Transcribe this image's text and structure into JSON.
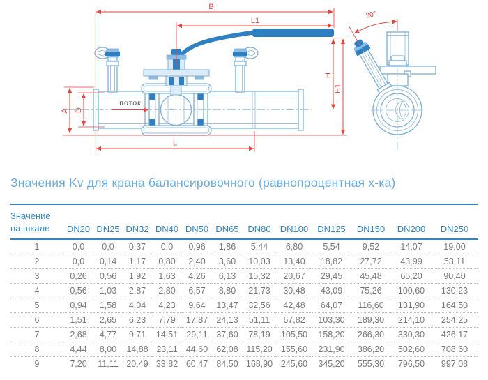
{
  "drawing": {
    "dim_labels": {
      "b": "B",
      "l1": "L1",
      "h": "H",
      "h1": "H1",
      "a": "A",
      "d": "D",
      "l": "L"
    },
    "angle_label": "30°",
    "flow_label": "поток",
    "colors": {
      "outline_blue": "#79afd9",
      "fill_dark_blue": "#2f80c3",
      "fill_mid_blue": "#8fbce2",
      "fill_light_blue": "#dcebf7",
      "dimension_red": "#e8433c",
      "centerline_blue": "#a6cbe9"
    }
  },
  "title": "Значения Kv для крана балансировочного (равнопроцентная х-ка)",
  "table": {
    "accent_color": "#2e86c8",
    "value_color": "#7a7a7a",
    "row_header": [
      "Значение",
      "на шкале"
    ],
    "columns": [
      "DN20",
      "DN25",
      "DN32",
      "DN40",
      "DN50",
      "DN65",
      "DN80",
      "DN100",
      "DN125",
      "DN150",
      "DN200",
      "DN250"
    ],
    "rows": [
      {
        "scale": "1",
        "values": [
          "0,0",
          "0,0",
          "0,37",
          "0,0",
          "0,96",
          "1,86",
          "5,44",
          "6,80",
          "5,54",
          "9,52",
          "14,07",
          "19,00"
        ]
      },
      {
        "scale": "2",
        "values": [
          "0,0",
          "0,14",
          "1,17",
          "0,80",
          "2,40",
          "3,60",
          "10,03",
          "13,40",
          "18,82",
          "27,72",
          "43,99",
          "53,11"
        ]
      },
      {
        "scale": "3",
        "values": [
          "0,26",
          "0,56",
          "1,92",
          "1,63",
          "4,26",
          "6,13",
          "15,32",
          "20,67",
          "29,45",
          "45,48",
          "65,20",
          "90,40"
        ]
      },
      {
        "scale": "4",
        "values": [
          "0,56",
          "1,03",
          "2,87",
          "2,80",
          "6,57",
          "8,80",
          "21,73",
          "30,48",
          "43,09",
          "75,26",
          "100,60",
          "130,23"
        ]
      },
      {
        "scale": "5",
        "values": [
          "0,94",
          "1,58",
          "4,04",
          "4,23",
          "9,64",
          "13,47",
          "32,56",
          "42,48",
          "64,07",
          "116,60",
          "131,90",
          "164,50"
        ]
      },
      {
        "scale": "6",
        "values": [
          "1,51",
          "2,65",
          "6,23",
          "7,79",
          "17,87",
          "24,13",
          "51,11",
          "67,82",
          "103,30",
          "189,30",
          "214,10",
          "254,25"
        ]
      },
      {
        "scale": "7",
        "values": [
          "2,68",
          "4,77",
          "9,71",
          "14,51",
          "29,11",
          "37,60",
          "78,19",
          "105,50",
          "158,20",
          "266,30",
          "330,30",
          "426,17"
        ]
      },
      {
        "scale": "8",
        "values": [
          "4,44",
          "8,00",
          "14,88",
          "23,11",
          "44,60",
          "62,08",
          "115,20",
          "155,60",
          "231,90",
          "386,20",
          "502,60",
          "708,60"
        ]
      },
      {
        "scale": "9",
        "values": [
          "7,20",
          "11,11",
          "20,49",
          "33,82",
          "60,47",
          "84,50",
          "168,90",
          "245,60",
          "345,20",
          "555,30",
          "796,50",
          "997,08"
        ]
      }
    ]
  }
}
